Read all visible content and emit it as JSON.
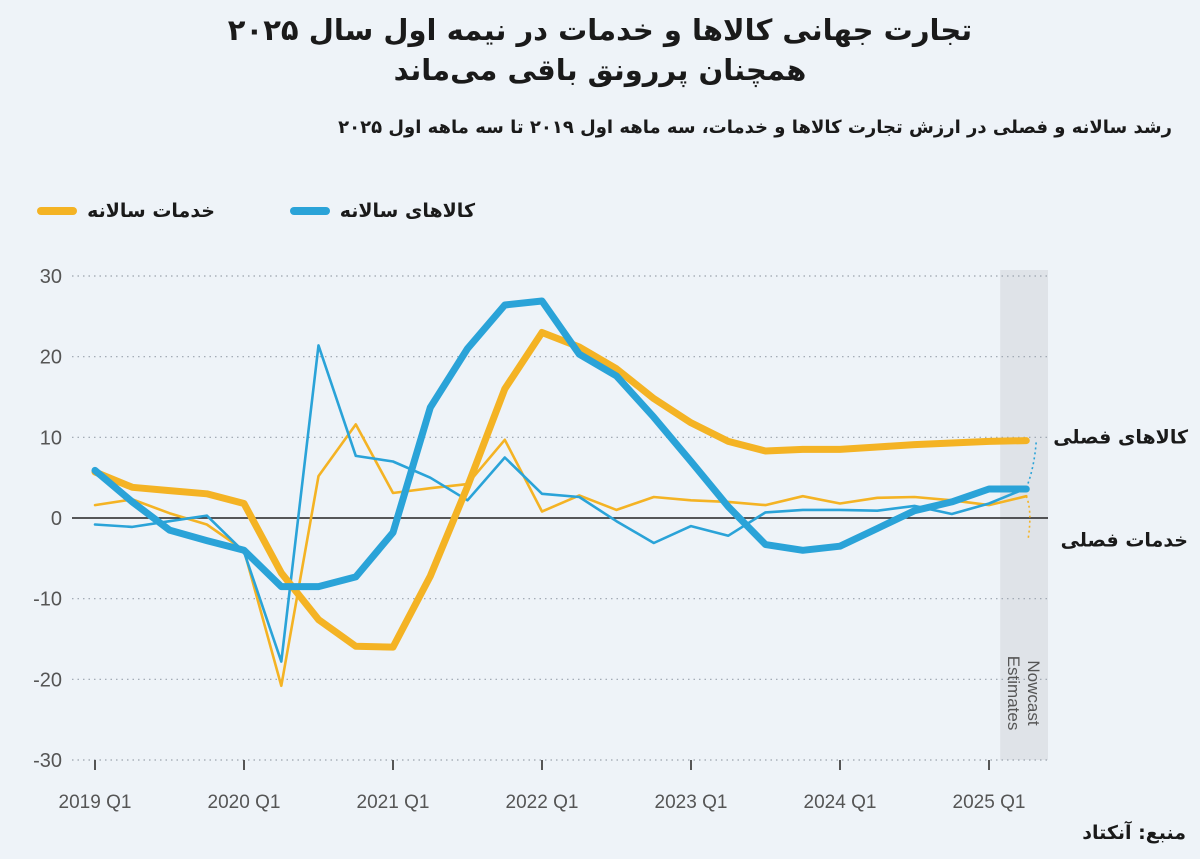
{
  "header": {
    "title_line1": "تجارت جهانی کالاها و خدمات در نیمه اول سال ۲۰۲۵",
    "title_line2": "همچنان پررونق باقی می‌ماند",
    "subtitle": "رشد سالانه و فصلی در ارزش تجارت کالاها و خدمات، سه ماهه اول ۲۰۱۹ تا سه ماهه اول ۲۰۲۵"
  },
  "legend": {
    "services_label": "خدمات سالانه",
    "goods_label": "کالاهای سالانه"
  },
  "source": "منبع: آنکتاد",
  "colors": {
    "services": "#f4b324",
    "goods": "#2aa3d8",
    "nowcast_band": "#dfe3e8",
    "grid": "#9aa3ad"
  },
  "chart_data": {
    "type": "line",
    "title": "",
    "xlabel": "",
    "ylabel": "",
    "ylim": [
      -30,
      30
    ],
    "yticks": [
      30,
      20,
      10,
      0,
      -10,
      -20,
      -30
    ],
    "ytick_labels": [
      "30",
      "20",
      "10",
      "0",
      "-10",
      "-20",
      "-30"
    ],
    "grid": true,
    "x_categories": [
      "2019 Q1",
      "2019 Q2",
      "2019 Q3",
      "2019 Q4",
      "2020 Q1",
      "2020 Q2",
      "2020 Q3",
      "2020 Q4",
      "2021 Q1",
      "2021 Q2",
      "2021 Q3",
      "2021 Q4",
      "2022 Q1",
      "2022 Q2",
      "2022 Q3",
      "2022 Q4",
      "2023 Q1",
      "2023 Q2",
      "2023 Q3",
      "2023 Q4",
      "2024 Q1",
      "2024 Q2",
      "2024 Q3",
      "2024 Q4",
      "2025 Q1",
      "2025 Q2"
    ],
    "xtick_labels": [
      "2019 Q1",
      "2020 Q1",
      "2021 Q1",
      "2022 Q1",
      "2023 Q1",
      "2024 Q1",
      "2025 Q1"
    ],
    "nowcast_label_line1": "Nowcast",
    "nowcast_label_line2": "Estimates",
    "nowcast_from_index": 24.3,
    "series": [
      {
        "name": "خدمات سالانه",
        "style": "thick",
        "color": "#f4b324",
        "values": [
          5.7,
          3.8,
          3.4,
          3.0,
          1.8,
          -6.8,
          -12.6,
          -15.9,
          -16.0,
          -7.2,
          3.9,
          16.0,
          23.0,
          21.2,
          18.5,
          14.8,
          11.8,
          9.5,
          8.3,
          8.5,
          8.5,
          8.8,
          9.1,
          9.3,
          9.5,
          9.6
        ]
      },
      {
        "name": "کالاهای سالانه",
        "style": "thick",
        "color": "#2aa3d8",
        "values": [
          5.9,
          2.0,
          -1.5,
          -2.8,
          -4.0,
          -8.5,
          -8.5,
          -7.3,
          -1.8,
          13.7,
          21.0,
          26.4,
          26.9,
          20.3,
          17.6,
          12.5,
          7.0,
          1.4,
          -3.3,
          -4.0,
          -3.5,
          -1.3,
          0.9,
          2.0,
          3.6,
          3.6
        ]
      },
      {
        "name": "خدمات فصلی",
        "style": "thin",
        "color": "#f4b324",
        "values": [
          1.6,
          2.3,
          0.6,
          -0.8,
          -4.0,
          -20.8,
          5.2,
          11.6,
          3.1,
          3.7,
          4.2,
          9.7,
          0.8,
          2.8,
          1.0,
          2.6,
          2.2,
          2.0,
          1.6,
          2.7,
          1.8,
          2.5,
          2.6,
          2.2,
          1.6,
          2.7
        ]
      },
      {
        "name": "کالاهای فصلی",
        "style": "thin",
        "color": "#2aa3d8",
        "values": [
          -0.8,
          -1.1,
          -0.4,
          0.3,
          -4.2,
          -17.8,
          21.4,
          7.7,
          7.0,
          5.0,
          2.2,
          7.5,
          3.0,
          2.6,
          -0.4,
          -3.1,
          -1.0,
          -2.2,
          0.7,
          1.0,
          1.0,
          0.9,
          1.5,
          0.5,
          1.8,
          3.7
        ]
      }
    ],
    "end_labels": {
      "goods_quarterly": "کالاهای فصلی",
      "services_quarterly": "خدمات فصلی"
    }
  }
}
